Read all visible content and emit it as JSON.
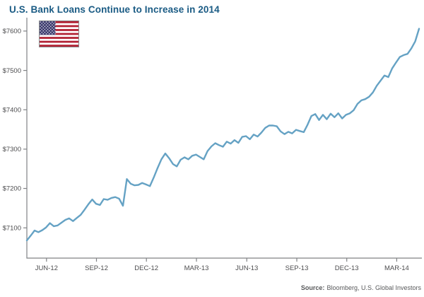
{
  "header": {
    "title": "U.S. Bank Loans Continue to Increase in 2014"
  },
  "source": {
    "label": "Source:",
    "text": "Bloomberg, U.S. Global Investors"
  },
  "colors": {
    "title_blue": "#1a5b84",
    "line_blue": "#65a2c4",
    "axis_gray": "#808285",
    "tick_text_gray": "#4d4d4f",
    "source_gray": "#58595b",
    "flag_red": "#b22234",
    "flag_blue": "#3c3b6e",
    "flag_white": "#ffffff",
    "flag_border": "#8a8c8e"
  },
  "chart_data": {
    "type": "line",
    "title": "U.S. Bank Loans Continue to Increase in 2014",
    "xlabel": "",
    "ylabel": "",
    "legend": "none",
    "grid": false,
    "frequency": "weekly",
    "ylim": [
      7023,
      7634
    ],
    "y_ticks": [
      7600,
      7500,
      7400,
      7300,
      7200,
      7100
    ],
    "y_tick_labels": [
      "$7600",
      "$7500",
      "$7400",
      "$7300",
      "$7200",
      "$7100"
    ],
    "x_tick_labels": [
      "JUN-12",
      "SEP-12",
      "DEC-12",
      "MAR-13",
      "JUN-13",
      "SEP-13",
      "DEC-13",
      "MAR-14"
    ],
    "x_tick_week_positions": [
      5.1,
      18.1,
      31.1,
      44.1,
      57.2,
      70.2,
      83.2,
      96.2
    ],
    "values": [
      7068,
      7080,
      7093,
      7089,
      7094,
      7101,
      7112,
      7104,
      7106,
      7113,
      7120,
      7124,
      7117,
      7125,
      7133,
      7146,
      7160,
      7172,
      7161,
      7158,
      7173,
      7171,
      7176,
      7178,
      7174,
      7156,
      7224,
      7212,
      7208,
      7209,
      7214,
      7210,
      7206,
      7228,
      7252,
      7274,
      7289,
      7277,
      7262,
      7256,
      7273,
      7279,
      7274,
      7283,
      7286,
      7280,
      7274,
      7295,
      7307,
      7315,
      7310,
      7306,
      7319,
      7314,
      7323,
      7316,
      7331,
      7333,
      7325,
      7337,
      7332,
      7342,
      7354,
      7360,
      7360,
      7358,
      7345,
      7338,
      7344,
      7340,
      7349,
      7346,
      7343,
      7362,
      7384,
      7389,
      7374,
      7387,
      7376,
      7390,
      7381,
      7391,
      7378,
      7387,
      7391,
      7399,
      7415,
      7424,
      7427,
      7433,
      7444,
      7461,
      7474,
      7487,
      7483,
      7505,
      7520,
      7534,
      7539,
      7542,
      7556,
      7574,
      7606
    ]
  }
}
